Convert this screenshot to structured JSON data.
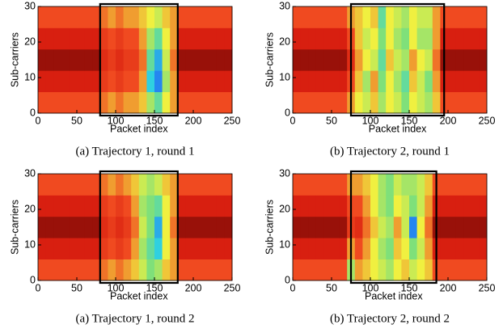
{
  "chart_data": [
    {
      "type": "heatmap",
      "caption": "(a) Trajectory 1, round 1",
      "xlabel": "Packet index",
      "ylabel": "Sub-carriers",
      "xlim": [
        0,
        250
      ],
      "xticks": [
        0,
        50,
        100,
        150,
        200,
        250
      ],
      "ylim": [
        0,
        30
      ],
      "yticks": [
        0,
        10,
        20,
        30
      ],
      "box": [
        80,
        180
      ],
      "zlim": [
        0,
        1
      ],
      "colorscale": [
        [
          0,
          "#1a3cff"
        ],
        [
          0.2,
          "#2fd0e0"
        ],
        [
          0.35,
          "#7fe07a"
        ],
        [
          0.5,
          "#f0f040"
        ],
        [
          0.7,
          "#f04a20"
        ],
        [
          0.85,
          "#d81f10"
        ],
        [
          1,
          "#7a0a05"
        ]
      ],
      "z": [
        [
          0.7,
          0.7,
          0.7,
          0.7,
          0.7,
          0.7,
          0.7,
          0.7,
          0.65,
          0.6,
          0.65,
          0.6,
          0.6,
          0.55,
          0.4,
          0.3,
          0.5,
          0.6,
          0.7,
          0.7,
          0.7,
          0.7,
          0.7,
          0.7,
          0.7
        ],
        [
          0.85,
          0.85,
          0.85,
          0.85,
          0.85,
          0.85,
          0.85,
          0.85,
          0.75,
          0.7,
          0.75,
          0.7,
          0.7,
          0.6,
          0.2,
          0.1,
          0.4,
          0.6,
          0.85,
          0.85,
          0.85,
          0.85,
          0.85,
          0.85,
          0.85
        ],
        [
          0.95,
          0.95,
          0.95,
          0.95,
          0.95,
          0.95,
          0.95,
          0.95,
          0.8,
          0.75,
          0.8,
          0.75,
          0.75,
          0.65,
          0.3,
          0.15,
          0.45,
          0.65,
          0.95,
          0.95,
          0.95,
          0.95,
          0.95,
          0.95,
          0.95
        ],
        [
          0.85,
          0.85,
          0.85,
          0.85,
          0.85,
          0.85,
          0.85,
          0.85,
          0.75,
          0.7,
          0.75,
          0.7,
          0.7,
          0.6,
          0.4,
          0.3,
          0.5,
          0.6,
          0.85,
          0.85,
          0.85,
          0.85,
          0.85,
          0.85,
          0.85
        ],
        [
          0.7,
          0.7,
          0.7,
          0.7,
          0.7,
          0.7,
          0.7,
          0.7,
          0.65,
          0.6,
          0.65,
          0.6,
          0.6,
          0.55,
          0.5,
          0.45,
          0.55,
          0.6,
          0.7,
          0.7,
          0.7,
          0.7,
          0.7,
          0.7,
          0.7
        ]
      ]
    },
    {
      "type": "heatmap",
      "caption": "(b) Trajectory 2, round 1",
      "xlabel": "Packet index",
      "ylabel": "Sub-carriers",
      "xlim": [
        0,
        250
      ],
      "xticks": [
        0,
        50,
        100,
        150,
        200,
        250
      ],
      "ylim": [
        0,
        30
      ],
      "yticks": [
        0,
        10,
        20,
        30
      ],
      "box": [
        75,
        195
      ],
      "zlim": [
        0,
        1
      ],
      "colorscale": [
        [
          0,
          "#1a3cff"
        ],
        [
          0.2,
          "#2fd0e0"
        ],
        [
          0.35,
          "#7fe07a"
        ],
        [
          0.5,
          "#f0f040"
        ],
        [
          0.7,
          "#f04a20"
        ],
        [
          0.85,
          "#d81f10"
        ],
        [
          1,
          "#7a0a05"
        ]
      ],
      "z": [
        [
          0.7,
          0.7,
          0.7,
          0.7,
          0.7,
          0.7,
          0.7,
          0.6,
          0.5,
          0.45,
          0.55,
          0.4,
          0.5,
          0.45,
          0.35,
          0.5,
          0.45,
          0.4,
          0.55,
          0.7,
          0.7,
          0.7,
          0.7,
          0.7,
          0.7
        ],
        [
          0.85,
          0.85,
          0.85,
          0.85,
          0.85,
          0.85,
          0.85,
          0.7,
          0.55,
          0.4,
          0.6,
          0.35,
          0.5,
          0.4,
          0.3,
          0.55,
          0.45,
          0.35,
          0.6,
          0.85,
          0.85,
          0.85,
          0.85,
          0.85,
          0.85
        ],
        [
          0.95,
          0.95,
          0.95,
          0.95,
          0.95,
          0.95,
          0.95,
          0.8,
          0.6,
          0.5,
          0.45,
          0.3,
          0.55,
          0.45,
          0.4,
          0.6,
          0.5,
          0.45,
          0.65,
          0.95,
          0.95,
          0.95,
          0.95,
          0.95,
          0.95
        ],
        [
          0.85,
          0.85,
          0.85,
          0.85,
          0.85,
          0.85,
          0.85,
          0.7,
          0.55,
          0.45,
          0.5,
          0.35,
          0.5,
          0.4,
          0.35,
          0.5,
          0.4,
          0.4,
          0.6,
          0.85,
          0.85,
          0.85,
          0.85,
          0.85,
          0.85
        ],
        [
          0.7,
          0.7,
          0.7,
          0.7,
          0.7,
          0.7,
          0.7,
          0.6,
          0.55,
          0.5,
          0.55,
          0.3,
          0.5,
          0.45,
          0.4,
          0.5,
          0.45,
          0.45,
          0.6,
          0.7,
          0.7,
          0.7,
          0.7,
          0.7,
          0.7
        ]
      ]
    },
    {
      "type": "heatmap",
      "caption": "(a) Trajectory 1, round 2",
      "xlabel": "Packet index",
      "ylabel": "Sub-carriers",
      "xlim": [
        0,
        250
      ],
      "xticks": [
        0,
        50,
        100,
        150,
        200,
        250
      ],
      "ylim": [
        0,
        30
      ],
      "yticks": [
        0,
        10,
        20,
        30
      ],
      "box": [
        80,
        180
      ],
      "zlim": [
        0,
        1
      ],
      "colorscale": [
        [
          0,
          "#1a3cff"
        ],
        [
          0.2,
          "#2fd0e0"
        ],
        [
          0.35,
          "#7fe07a"
        ],
        [
          0.5,
          "#f0f040"
        ],
        [
          0.7,
          "#f04a20"
        ],
        [
          0.85,
          "#d81f10"
        ],
        [
          1,
          "#7a0a05"
        ]
      ],
      "z": [
        [
          0.7,
          0.7,
          0.7,
          0.7,
          0.7,
          0.7,
          0.7,
          0.7,
          0.65,
          0.6,
          0.65,
          0.6,
          0.55,
          0.45,
          0.35,
          0.4,
          0.55,
          0.6,
          0.7,
          0.7,
          0.7,
          0.7,
          0.7,
          0.7,
          0.7
        ],
        [
          0.85,
          0.85,
          0.85,
          0.85,
          0.85,
          0.85,
          0.85,
          0.85,
          0.75,
          0.7,
          0.75,
          0.7,
          0.6,
          0.4,
          0.3,
          0.2,
          0.5,
          0.6,
          0.85,
          0.85,
          0.85,
          0.85,
          0.85,
          0.85,
          0.85
        ],
        [
          0.95,
          0.95,
          0.95,
          0.95,
          0.95,
          0.95,
          0.95,
          0.95,
          0.8,
          0.75,
          0.8,
          0.75,
          0.65,
          0.45,
          0.35,
          0.15,
          0.5,
          0.65,
          0.95,
          0.95,
          0.95,
          0.95,
          0.95,
          0.95,
          0.95
        ],
        [
          0.85,
          0.85,
          0.85,
          0.85,
          0.85,
          0.85,
          0.85,
          0.85,
          0.75,
          0.7,
          0.75,
          0.7,
          0.6,
          0.4,
          0.35,
          0.3,
          0.5,
          0.6,
          0.85,
          0.85,
          0.85,
          0.85,
          0.85,
          0.85,
          0.85
        ],
        [
          0.7,
          0.7,
          0.7,
          0.7,
          0.7,
          0.7,
          0.7,
          0.7,
          0.65,
          0.6,
          0.65,
          0.6,
          0.55,
          0.45,
          0.4,
          0.45,
          0.55,
          0.6,
          0.7,
          0.7,
          0.7,
          0.7,
          0.7,
          0.7,
          0.7
        ]
      ]
    },
    {
      "type": "heatmap",
      "caption": "(b) Trajectory 2, round 2",
      "xlabel": "Packet index",
      "ylabel": "Sub-carriers",
      "xlim": [
        0,
        250
      ],
      "xticks": [
        0,
        50,
        100,
        150,
        200,
        250
      ],
      "ylim": [
        0,
        30
      ],
      "yticks": [
        0,
        10,
        20,
        30
      ],
      "box": [
        75,
        185
      ],
      "zlim": [
        0,
        1
      ],
      "colorscale": [
        [
          0,
          "#1a3cff"
        ],
        [
          0.2,
          "#2fd0e0"
        ],
        [
          0.35,
          "#7fe07a"
        ],
        [
          0.5,
          "#f0f040"
        ],
        [
          0.7,
          "#f04a20"
        ],
        [
          0.85,
          "#d81f10"
        ],
        [
          1,
          "#7a0a05"
        ]
      ],
      "z": [
        [
          0.7,
          0.7,
          0.7,
          0.7,
          0.7,
          0.7,
          0.7,
          0.4,
          0.6,
          0.55,
          0.5,
          0.45,
          0.4,
          0.5,
          0.55,
          0.45,
          0.5,
          0.55,
          0.7,
          0.7,
          0.7,
          0.7,
          0.7,
          0.7,
          0.7
        ],
        [
          0.85,
          0.85,
          0.85,
          0.85,
          0.85,
          0.85,
          0.85,
          0.6,
          0.7,
          0.6,
          0.5,
          0.4,
          0.35,
          0.55,
          0.5,
          0.35,
          0.45,
          0.6,
          0.85,
          0.85,
          0.85,
          0.85,
          0.85,
          0.85,
          0.85
        ],
        [
          0.95,
          0.95,
          0.95,
          0.95,
          0.95,
          0.95,
          0.95,
          0.75,
          0.8,
          0.65,
          0.55,
          0.45,
          0.4,
          0.6,
          0.45,
          0.1,
          0.5,
          0.65,
          0.95,
          0.95,
          0.95,
          0.95,
          0.95,
          0.95,
          0.95
        ],
        [
          0.85,
          0.85,
          0.85,
          0.85,
          0.85,
          0.85,
          0.85,
          0.7,
          0.7,
          0.6,
          0.5,
          0.4,
          0.35,
          0.5,
          0.45,
          0.35,
          0.45,
          0.6,
          0.85,
          0.85,
          0.85,
          0.85,
          0.85,
          0.85,
          0.85
        ],
        [
          0.7,
          0.7,
          0.7,
          0.7,
          0.7,
          0.7,
          0.7,
          0.6,
          0.6,
          0.55,
          0.5,
          0.4,
          0.35,
          0.45,
          0.4,
          0.4,
          0.45,
          0.55,
          0.7,
          0.7,
          0.7,
          0.7,
          0.7,
          0.7,
          0.7
        ]
      ]
    }
  ]
}
